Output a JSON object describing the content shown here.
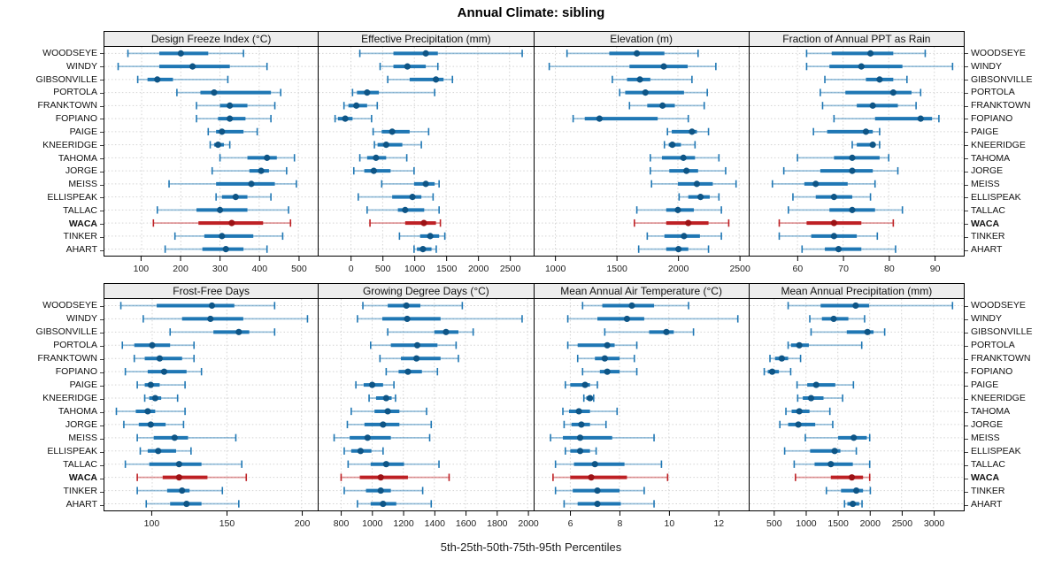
{
  "title": "Annual Climate: sibling",
  "caption": "5th-25th-50th-75th-95th Percentiles",
  "stations": [
    "WOODSEYE",
    "WINDY",
    "GIBSONVILLE",
    "PORTOLA",
    "FRANKTOWN",
    "FOPIANO",
    "PAIGE",
    "KNEERIDGE",
    "TAHOMA",
    "JORGE",
    "MEISS",
    "ELLISPEAK",
    "TALLAC",
    "WACA",
    "TINKER",
    "AHART"
  ],
  "highlight_station": "WACA",
  "colors": {
    "blue_box": "#1f77b4",
    "blue_dot": "#0e5586",
    "blue_whisker": "rgba(31,119,180,0.45)",
    "red_box": "#be2024",
    "red_dot": "#9c1215",
    "red_whisker": "rgba(190,32,36,0.45)",
    "grid": "#d3d3d3",
    "strip_bg": "#ededed",
    "axis_text": "#222222"
  },
  "chart_data": [
    {
      "type": "dotplot-percentiles",
      "title": "Design Freeze Index (°C)",
      "percentiles": [
        5,
        25,
        50,
        75,
        95
      ],
      "xlim": [
        5,
        550
      ],
      "ticks": [
        100,
        200,
        300,
        400,
        500
      ],
      "values": [
        [
          65,
          145,
          200,
          270,
          360
        ],
        [
          40,
          145,
          230,
          325,
          420
        ],
        [
          90,
          115,
          140,
          180,
          320
        ],
        [
          190,
          250,
          285,
          430,
          455
        ],
        [
          240,
          300,
          325,
          370,
          440
        ],
        [
          240,
          295,
          325,
          365,
          430
        ],
        [
          270,
          290,
          305,
          360,
          395
        ],
        [
          275,
          285,
          295,
          310,
          325
        ],
        [
          300,
          370,
          420,
          445,
          490
        ],
        [
          280,
          375,
          405,
          425,
          470
        ],
        [
          170,
          290,
          380,
          440,
          495
        ],
        [
          290,
          305,
          340,
          370,
          430
        ],
        [
          140,
          240,
          300,
          370,
          475
        ],
        [
          130,
          245,
          330,
          410,
          480
        ],
        [
          185,
          260,
          305,
          385,
          460
        ],
        [
          160,
          255,
          315,
          360,
          420
        ]
      ]
    },
    {
      "type": "dotplot-percentiles",
      "title": "Effective Precipitation (mm)",
      "percentiles": [
        5,
        25,
        50,
        75,
        95
      ],
      "xlim": [
        -510,
        2870
      ],
      "ticks": [
        0,
        500,
        1000,
        1500,
        2000,
        2500
      ],
      "values": [
        [
          140,
          670,
          1180,
          1370,
          2700
        ],
        [
          460,
          670,
          890,
          1180,
          1370
        ],
        [
          580,
          925,
          1340,
          1460,
          1600
        ],
        [
          25,
          95,
          255,
          440,
          1320
        ],
        [
          -110,
          -40,
          85,
          255,
          415
        ],
        [
          -250,
          -205,
          -90,
          25,
          325
        ],
        [
          350,
          485,
          650,
          925,
          1225
        ],
        [
          370,
          420,
          555,
          810,
          1110
        ],
        [
          140,
          255,
          395,
          555,
          880
        ],
        [
          45,
          210,
          360,
          625,
          995
        ],
        [
          485,
          995,
          1180,
          1320,
          1390
        ],
        [
          115,
          650,
          970,
          1110,
          1295
        ],
        [
          255,
          740,
          855,
          1155,
          1390
        ],
        [
          300,
          855,
          1150,
          1340,
          1410
        ],
        [
          765,
          1090,
          1250,
          1390,
          1480
        ],
        [
          995,
          1040,
          1135,
          1270,
          1345
        ]
      ]
    },
    {
      "type": "dotplot-percentiles",
      "title": "Elevation (m)",
      "percentiles": [
        5,
        25,
        50,
        75,
        95
      ],
      "xlim": [
        830,
        2580
      ],
      "ticks": [
        1000,
        1500,
        2000,
        2500
      ],
      "values": [
        [
          1095,
          1440,
          1665,
          1890,
          2165
        ],
        [
          950,
          1605,
          1885,
          2080,
          2310
        ],
        [
          1465,
          1585,
          1690,
          1775,
          2115
        ],
        [
          1525,
          1570,
          1735,
          2050,
          2240
        ],
        [
          1605,
          1750,
          1875,
          1975,
          2215
        ],
        [
          1145,
          1240,
          1360,
          1835,
          2085
        ],
        [
          1915,
          1950,
          2115,
          2155,
          2250
        ],
        [
          1890,
          1925,
          1955,
          2025,
          2140
        ],
        [
          1775,
          1870,
          2045,
          2140,
          2335
        ],
        [
          1775,
          1930,
          2070,
          2165,
          2390
        ],
        [
          1785,
          2000,
          2155,
          2285,
          2475
        ],
        [
          2010,
          2085,
          2185,
          2260,
          2335
        ],
        [
          1665,
          1905,
          2000,
          2130,
          2355
        ],
        [
          1645,
          1905,
          2085,
          2250,
          2415
        ],
        [
          1750,
          1890,
          2050,
          2180,
          2355
        ],
        [
          1680,
          1905,
          2005,
          2085,
          2250
        ]
      ]
    },
    {
      "type": "dotplot-percentiles",
      "title": "Fraction of Annual PPT as Rain",
      "percentiles": [
        5,
        25,
        50,
        75,
        95
      ],
      "xlim": [
        49.5,
        96.5
      ],
      "ticks": [
        60,
        70,
        80,
        90
      ],
      "values": [
        [
          62,
          67.5,
          76,
          81,
          88
        ],
        [
          62,
          67,
          74,
          83,
          94
        ],
        [
          66,
          75,
          78,
          81,
          84
        ],
        [
          65,
          70.5,
          81,
          85,
          87
        ],
        [
          65.5,
          73,
          76.5,
          82,
          86
        ],
        [
          68,
          77,
          87,
          89.5,
          91
        ],
        [
          63.5,
          66.5,
          75,
          76.5,
          78
        ],
        [
          72,
          73,
          76.5,
          77,
          78
        ],
        [
          60,
          68,
          72,
          78,
          80
        ],
        [
          57,
          65,
          72,
          76.5,
          82
        ],
        [
          54.5,
          61.5,
          64,
          71,
          77
        ],
        [
          59,
          64,
          68,
          72,
          76
        ],
        [
          58,
          67,
          72,
          77,
          83
        ],
        [
          56,
          62,
          68,
          74,
          81
        ],
        [
          56,
          63,
          68,
          73,
          77.5
        ],
        [
          61,
          66,
          69,
          74,
          81.5
        ]
      ]
    },
    {
      "type": "dotplot-percentiles",
      "title": "Frost-Free Days",
      "percentiles": [
        5,
        25,
        50,
        75,
        95
      ],
      "xlim": [
        68,
        211
      ],
      "ticks": [
        100,
        150,
        200
      ],
      "values": [
        [
          79,
          103,
          140,
          155,
          182
        ],
        [
          94,
          120,
          139,
          161,
          204
        ],
        [
          112,
          141,
          158,
          165,
          182
        ],
        [
          80,
          88,
          100,
          112,
          128
        ],
        [
          88,
          95,
          105,
          120,
          128
        ],
        [
          82,
          97,
          108,
          123,
          133
        ],
        [
          90,
          95,
          99,
          105,
          122
        ],
        [
          95,
          98,
          102,
          106,
          117
        ],
        [
          76,
          89,
          97,
          102,
          122
        ],
        [
          81,
          91,
          99,
          109,
          121
        ],
        [
          90,
          101,
          115,
          124,
          156
        ],
        [
          92,
          97,
          104,
          116,
          126
        ],
        [
          82,
          98,
          118,
          133,
          160
        ],
        [
          90,
          107,
          118,
          137,
          163
        ],
        [
          90,
          110,
          120,
          125,
          147
        ],
        [
          96,
          112,
          123,
          133,
          158
        ]
      ]
    },
    {
      "type": "dotplot-percentiles",
      "title": "Growing Degree Days (°C)",
      "percentiles": [
        5,
        25,
        50,
        75,
        95
      ],
      "xlim": [
        655,
        2035
      ],
      "ticks": [
        800,
        1000,
        1200,
        1400,
        1600,
        1800,
        2000
      ],
      "values": [
        [
          940,
          1100,
          1220,
          1310,
          1580
        ],
        [
          905,
          1065,
          1225,
          1440,
          1965
        ],
        [
          1100,
          1400,
          1475,
          1555,
          1650
        ],
        [
          990,
          1120,
          1290,
          1420,
          1540
        ],
        [
          1050,
          1185,
          1285,
          1440,
          1555
        ],
        [
          1090,
          1170,
          1230,
          1320,
          1420
        ],
        [
          895,
          945,
          1000,
          1070,
          1140
        ],
        [
          980,
          1025,
          1090,
          1125,
          1150
        ],
        [
          865,
          1015,
          1100,
          1175,
          1350
        ],
        [
          840,
          950,
          1070,
          1175,
          1380
        ],
        [
          755,
          855,
          970,
          1120,
          1370
        ],
        [
          820,
          865,
          925,
          995,
          1070
        ],
        [
          845,
          990,
          1090,
          1205,
          1430
        ],
        [
          800,
          920,
          1055,
          1230,
          1495
        ],
        [
          820,
          960,
          1055,
          1120,
          1325
        ],
        [
          905,
          990,
          1070,
          1155,
          1380
        ]
      ]
    },
    {
      "type": "dotplot-percentiles",
      "title": "Mean Annual Air Temperature (°C)",
      "percentiles": [
        5,
        25,
        50,
        75,
        95
      ],
      "xlim": [
        4.55,
        13.25
      ],
      "ticks": [
        6,
        8,
        10,
        12
      ],
      "values": [
        [
          6.5,
          7.3,
          8.5,
          9.4,
          10.8
        ],
        [
          5.9,
          7.1,
          8.3,
          9.0,
          12.8
        ],
        [
          7.4,
          9.2,
          9.9,
          10.2,
          11.0
        ],
        [
          5.9,
          6.3,
          7.5,
          7.8,
          8.7
        ],
        [
          6.3,
          7.0,
          7.4,
          8.0,
          8.6
        ],
        [
          6.5,
          7.2,
          7.5,
          8.0,
          8.7
        ],
        [
          5.8,
          6.0,
          6.6,
          6.8,
          7.1
        ],
        [
          6.55,
          6.65,
          6.8,
          6.9,
          6.95
        ],
        [
          5.7,
          5.95,
          6.35,
          6.8,
          7.9
        ],
        [
          5.75,
          6.05,
          6.45,
          6.8,
          7.45
        ],
        [
          5.2,
          5.7,
          6.4,
          7.7,
          9.4
        ],
        [
          5.8,
          6.0,
          6.4,
          6.8,
          7.05
        ],
        [
          5.4,
          6.15,
          7.0,
          8.2,
          9.7
        ],
        [
          5.3,
          6.0,
          6.85,
          8.3,
          9.95
        ],
        [
          5.4,
          6.1,
          7.1,
          8.0,
          9.0
        ],
        [
          5.75,
          6.3,
          7.1,
          8.05,
          9.4
        ]
      ]
    },
    {
      "type": "dotplot-percentiles",
      "title": "Mean Annual Precipitation (mm)",
      "percentiles": [
        5,
        25,
        50,
        75,
        95
      ],
      "xlim": [
        115,
        3480
      ],
      "ticks": [
        500,
        1000,
        1500,
        2000,
        2500,
        3000
      ],
      "values": [
        [
          720,
          1230,
          1780,
          1990,
          3300
        ],
        [
          1060,
          1250,
          1435,
          1665,
          1920
        ],
        [
          1080,
          1640,
          1965,
          2060,
          2235
        ],
        [
          720,
          765,
          895,
          1045,
          1875
        ],
        [
          435,
          515,
          620,
          720,
          915
        ],
        [
          345,
          400,
          470,
          575,
          760
        ],
        [
          860,
          1020,
          1160,
          1460,
          1745
        ],
        [
          870,
          950,
          1080,
          1275,
          1575
        ],
        [
          685,
          775,
          895,
          1055,
          1375
        ],
        [
          590,
          720,
          880,
          1145,
          1420
        ],
        [
          990,
          1505,
          1750,
          1955,
          2000
        ],
        [
          665,
          1065,
          1450,
          1540,
          1790
        ],
        [
          815,
          1135,
          1390,
          1735,
          2000
        ],
        [
          835,
          1390,
          1720,
          1895,
          2000
        ],
        [
          1320,
          1550,
          1790,
          1895,
          2010
        ],
        [
          1605,
          1650,
          1735,
          1835,
          1880
        ]
      ]
    }
  ]
}
